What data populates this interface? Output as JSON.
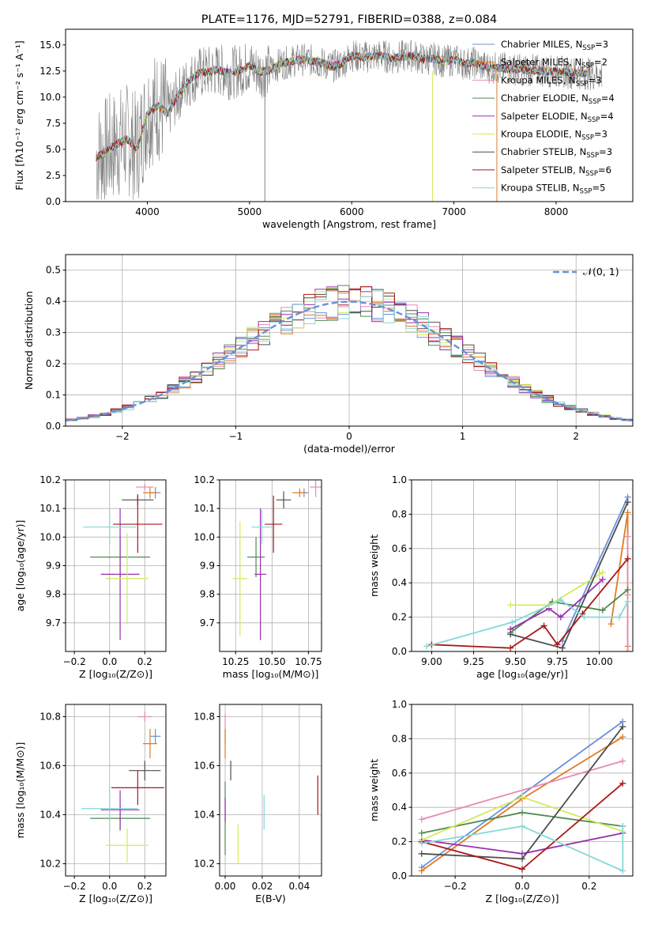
{
  "colors": {
    "chabrier_miles": "#6a8fdc",
    "salpeter_miles": "#e07b24",
    "kroupa_miles": "#e58ab6",
    "chabrier_elodie": "#4e8a4e",
    "salpeter_elodie": "#9a2fb0",
    "kroupa_elodie": "#d4ea5a",
    "chabrier_stelib": "#4d4d4d",
    "salpeter_stelib": "#a81818",
    "kroupa_stelib": "#85d8d8",
    "data": "#808080",
    "normal": "#6a8fdc"
  },
  "chart_data": [
    {
      "id": "spectrum",
      "type": "line",
      "title": "PLATE=1176, MJD=52791, FIBERID=0388, z=0.084",
      "xlabel": "wavelength [Angstrom, rest frame]",
      "ylabel": "Flux [f_λ 10^-17 erg cm^-2 s^-1 A^-1]",
      "xlim": [
        3200,
        8750
      ],
      "ylim": [
        0,
        16.5
      ],
      "xticks": [
        "4000",
        "5000",
        "6000",
        "7000",
        "8000"
      ],
      "yticks": [
        "0.0",
        "2.5",
        "5.0",
        "7.5",
        "10.0",
        "12.5",
        "15.0"
      ],
      "legend_position": "right",
      "series": [
        {
          "name": "Chabrier MILES, N_SSP=3"
        },
        {
          "name": "Salpeter MILES, N_SSP=2"
        },
        {
          "name": "Kroupa MILES, N_SSP=3"
        },
        {
          "name": "Chabrier ELODIE, N_SSP=4"
        },
        {
          "name": "Salpeter ELODIE, N_SSP=4"
        },
        {
          "name": "Kroupa ELODIE, N_SSP=3"
        },
        {
          "name": "Chabrier STELIB, N_SSP=3"
        },
        {
          "name": "Salpeter STELIB, N_SSP=6"
        },
        {
          "name": "Kroupa STELIB, N_SSP=5"
        }
      ],
      "model_curve": {
        "x": [
          3500,
          3600,
          3700,
          3800,
          3900,
          4000,
          4100,
          4200,
          4300,
          4400,
          4500,
          4600,
          4700,
          4800,
          4900,
          5000,
          5100,
          5200,
          5300,
          5400,
          5500,
          5600,
          5700,
          5800,
          5900,
          6000,
          6100,
          6200,
          6300,
          6400,
          6500,
          6600,
          6700,
          6800,
          6900,
          7000,
          7100,
          7200,
          7300,
          7400
        ],
        "y": [
          4.2,
          4.8,
          5.5,
          6.0,
          5.0,
          8.5,
          9.2,
          8.4,
          10.2,
          11.5,
          12.3,
          12.4,
          12.6,
          12.3,
          12.5,
          13.0,
          12.4,
          12.6,
          13.2,
          13.4,
          13.6,
          13.5,
          13.3,
          12.9,
          13.2,
          14.0,
          13.8,
          13.9,
          14.0,
          13.7,
          13.9,
          14.0,
          13.6,
          13.7,
          13.4,
          13.6,
          13.2,
          13.3,
          12.9,
          12.8
        ]
      }
    },
    {
      "id": "residuals",
      "type": "bar",
      "xlabel": "(data-model)/error",
      "ylabel": "Normed distribution",
      "xlim": [
        -2.5,
        2.5
      ],
      "ylim": [
        0,
        0.55
      ],
      "xticks": [
        "−2",
        "−1",
        "0",
        "1",
        "2"
      ],
      "yticks": [
        "0.0",
        "0.1",
        "0.2",
        "0.3",
        "0.4",
        "0.5"
      ],
      "legend": "𝒩(0, 1)",
      "legend_position": "top-right",
      "grid": true
    },
    {
      "id": "age_vs_Z",
      "type": "scatter",
      "xlabel": "Z [log₁₀(Z/Z⊙)]",
      "ylabel": "age  [log₁₀(age/yr)]",
      "xlim": [
        -0.25,
        0.32
      ],
      "ylim": [
        9.6,
        10.2
      ],
      "xticks": [
        "−0.2",
        "0.0",
        "0.2"
      ],
      "yticks": [
        "9.7",
        "9.8",
        "9.9",
        "10.0",
        "10.1",
        "10.2"
      ],
      "points": [
        {
          "x": 0.26,
          "y": 10.155,
          "xerr": 0.03,
          "yerr": 0.02
        },
        {
          "x": 0.23,
          "y": 10.155,
          "xerr": 0.04,
          "yerr": 0.02
        },
        {
          "x": 0.2,
          "y": 10.175,
          "xerr": 0.05,
          "yerr": 0.01
        },
        {
          "x": 0.06,
          "y": 9.93,
          "xerr": 0.17,
          "yerr": 0.07
        },
        {
          "x": 0.06,
          "y": 9.87,
          "xerr": 0.11,
          "yerr": 0.23
        },
        {
          "x": 0.1,
          "y": 9.855,
          "xerr": 0.12,
          "yerr": 0.16
        },
        {
          "x": 0.16,
          "y": 10.13,
          "xerr": 0.09,
          "yerr": 0.02
        },
        {
          "x": 0.16,
          "y": 10.045,
          "xerr": 0.14,
          "yerr": 0.1
        },
        {
          "x": 0.0,
          "y": 10.035,
          "xerr": 0.15,
          "yerr": 0.06
        }
      ]
    },
    {
      "id": "age_vs_mass",
      "type": "scatter",
      "xlabel": "mass [log₁₀(M/M⊙)]",
      "xlim": [
        10.14,
        10.84
      ],
      "ylim": [
        9.6,
        10.2
      ],
      "xticks": [
        "10.25",
        "10.50",
        "10.75"
      ],
      "yticks": [
        "9.7",
        "9.8",
        "9.9",
        "10.0",
        "10.1",
        "10.2"
      ],
      "points": [
        {
          "x": 10.72,
          "y": 10.155,
          "xerr": 0.03,
          "yerr": 0.015
        },
        {
          "x": 10.69,
          "y": 10.155,
          "xerr": 0.05,
          "yerr": 0.015
        },
        {
          "x": 10.8,
          "y": 10.175,
          "xerr": 0.04,
          "yerr": 0.035
        },
        {
          "x": 10.39,
          "y": 9.93,
          "xerr": 0.06,
          "yerr": 0.07
        },
        {
          "x": 10.42,
          "y": 9.87,
          "xerr": 0.04,
          "yerr": 0.23
        },
        {
          "x": 10.28,
          "y": 9.855,
          "xerr": 0.05,
          "yerr": 0.2
        },
        {
          "x": 10.58,
          "y": 10.13,
          "xerr": 0.05,
          "yerr": 0.03
        },
        {
          "x": 10.51,
          "y": 10.045,
          "xerr": 0.06,
          "yerr": 0.1
        },
        {
          "x": 10.43,
          "y": 10.035,
          "xerr": 0.07,
          "yerr": 0.06
        }
      ]
    },
    {
      "id": "weight_vs_age",
      "type": "line",
      "xlabel": "age  [log₁₀(age/yr)]",
      "ylabel": "mass weight",
      "xlim": [
        8.88,
        10.2
      ],
      "ylim": [
        0,
        1
      ],
      "xticks": [
        "9.00",
        "9.25",
        "9.50",
        "9.75",
        "10.00"
      ],
      "yticks": [
        "0.0",
        "0.2",
        "0.4",
        "0.6",
        "0.8",
        "1.0"
      ],
      "grid": true,
      "series": [
        {
          "ages": [
            9.78,
            10.17
          ],
          "weights": [
            0.06,
            0.9
          ]
        },
        {
          "ages": [
            10.07,
            10.17,
            10.17
          ],
          "weights": [
            0.16,
            0.81,
            0.03
          ]
        },
        {
          "ages": [
            10.17,
            10.17,
            10.17
          ],
          "weights": [
            0.67,
            0.33,
            0.0
          ]
        },
        {
          "ages": [
            9.47,
            9.72,
            10.02,
            10.17
          ],
          "weights": [
            0.11,
            0.29,
            0.24,
            0.36
          ]
        },
        {
          "ages": [
            9.47,
            9.7,
            9.77,
            10.02
          ],
          "weights": [
            0.13,
            0.25,
            0.2,
            0.42
          ]
        },
        {
          "ages": [
            9.47,
            9.7,
            10.02
          ],
          "weights": [
            0.27,
            0.27,
            0.46
          ]
        },
        {
          "ages": [
            9.47,
            9.78,
            10.17
          ],
          "weights": [
            0.1,
            0.02,
            0.87
          ]
        },
        {
          "ages": [
            9.0,
            9.47,
            9.67,
            9.75,
            9.9,
            10.17
          ],
          "weights": [
            0.04,
            0.02,
            0.15,
            0.04,
            0.22,
            0.54
          ]
        },
        {
          "ages": [
            8.97,
            9.48,
            9.77,
            9.91,
            10.12,
            10.17
          ],
          "weights": [
            0.03,
            0.17,
            0.3,
            0.2,
            0.2,
            0.29
          ]
        }
      ]
    },
    {
      "id": "mass_vs_Z",
      "type": "scatter",
      "xlabel": "Z [log₁₀(Z/Z⊙)]",
      "ylabel": "mass [log₁₀(M/M⊙)]",
      "xlim": [
        -0.25,
        0.32
      ],
      "ylim": [
        10.15,
        10.85
      ],
      "xticks": [
        "−0.2",
        "0.0",
        "0.2"
      ],
      "yticks": [
        "10.2",
        "10.4",
        "10.6",
        "10.8"
      ],
      "points": [
        {
          "x": 0.26,
          "y": 10.72,
          "xerr": 0.03,
          "yerr": 0.03
        },
        {
          "x": 0.23,
          "y": 10.69,
          "xerr": 0.04,
          "yerr": 0.06
        },
        {
          "x": 0.2,
          "y": 10.8,
          "xerr": 0.04,
          "yerr": 0.02
        },
        {
          "x": 0.06,
          "y": 10.385,
          "xerr": 0.17,
          "yerr": 0.05
        },
        {
          "x": 0.06,
          "y": 10.42,
          "xerr": 0.11,
          "yerr": 0.08
        },
        {
          "x": 0.1,
          "y": 10.275,
          "xerr": 0.12,
          "yerr": 0.07
        },
        {
          "x": 0.2,
          "y": 10.58,
          "xerr": 0.09,
          "yerr": 0.04
        },
        {
          "x": 0.16,
          "y": 10.51,
          "xerr": 0.15,
          "yerr": 0.07
        },
        {
          "x": 0.0,
          "y": 10.425,
          "xerr": 0.16,
          "yerr": 0.09
        }
      ]
    },
    {
      "id": "mass_vs_ebv",
      "type": "scatter",
      "xlabel": "E(B-V)",
      "xlim": [
        -0.003,
        0.052
      ],
      "ylim": [
        10.15,
        10.85
      ],
      "xticks": [
        "0.00",
        "0.02",
        "0.04"
      ],
      "yticks": [
        "10.2",
        "10.4",
        "10.6",
        "10.8"
      ],
      "points": [
        {
          "x": 0.0,
          "y": 10.72,
          "yerr": 0.03
        },
        {
          "x": 0.0,
          "y": 10.69,
          "yerr": 0.06
        },
        {
          "x": 0.0,
          "y": 10.78,
          "yerr": 0.03
        },
        {
          "x": 0.0,
          "y": 10.385,
          "yerr": 0.15
        },
        {
          "x": 0.0,
          "y": 10.42,
          "yerr": 0.05
        },
        {
          "x": 0.007,
          "y": 10.28,
          "yerr": 0.08
        },
        {
          "x": 0.003,
          "y": 10.58,
          "yerr": 0.04
        },
        {
          "x": 0.05,
          "y": 10.48,
          "yerr": 0.08
        },
        {
          "x": 0.021,
          "y": 10.41,
          "yerr": 0.07
        }
      ]
    },
    {
      "id": "weight_vs_Z",
      "type": "line",
      "xlabel": "Z [log₁₀(Z/Z⊙)]",
      "ylabel": "mass weight",
      "xlim": [
        -0.33,
        0.33
      ],
      "ylim": [
        0,
        1
      ],
      "xticks": [
        "−0.2",
        "0.0",
        "0.2"
      ],
      "yticks": [
        "0.0",
        "0.2",
        "0.4",
        "0.6",
        "0.8",
        "1.0"
      ],
      "grid": true,
      "series": [
        {
          "Z": [
            -0.3,
            0.3
          ],
          "weights": [
            0.05,
            0.9
          ]
        },
        {
          "Z": [
            -0.3,
            0.0,
            0.3
          ],
          "weights": [
            0.03,
            0.45,
            0.81
          ]
        },
        {
          "Z": [
            -0.3,
            0.3
          ],
          "weights": [
            0.33,
            0.67
          ]
        },
        {
          "Z": [
            -0.3,
            0.0,
            0.3
          ],
          "weights": [
            0.25,
            0.37,
            0.29
          ]
        },
        {
          "Z": [
            -0.3,
            0.0,
            0.3
          ],
          "weights": [
            0.21,
            0.13,
            0.25
          ]
        },
        {
          "Z": [
            -0.3,
            0.0,
            0.3
          ],
          "weights": [
            0.21,
            0.46,
            0.26
          ]
        },
        {
          "Z": [
            -0.3,
            0.0,
            0.3
          ],
          "weights": [
            0.13,
            0.1,
            0.87
          ]
        },
        {
          "Z": [
            -0.3,
            0.0,
            0.3
          ],
          "weights": [
            0.2,
            0.04,
            0.54
          ]
        },
        {
          "Z": [
            -0.3,
            0.0,
            0.3,
            0.3
          ],
          "weights": [
            0.19,
            0.29,
            0.03,
            0.29
          ]
        }
      ]
    }
  ]
}
